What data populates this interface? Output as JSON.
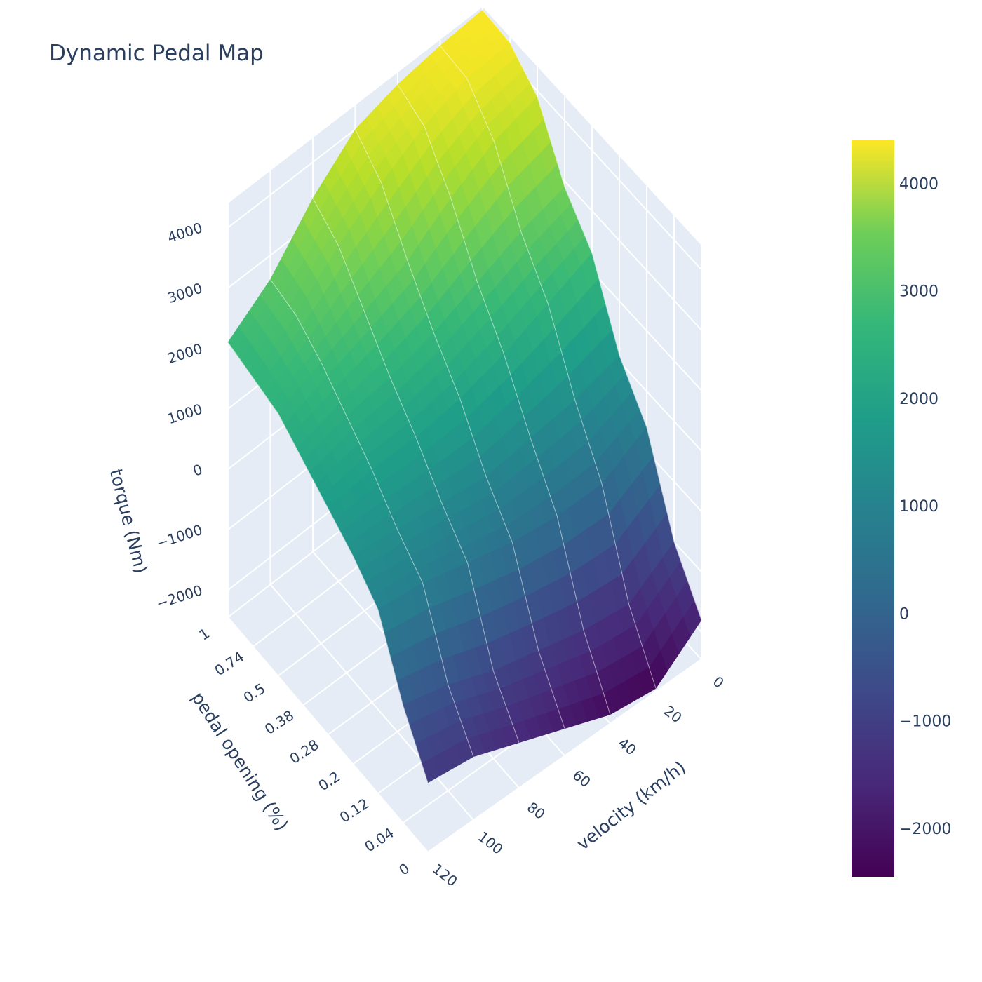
{
  "chart_data": {
    "type": "surface",
    "title": "Dynamic Pedal Map",
    "colorscale": "viridis",
    "x_axis": {
      "title": "velocity (km/h)",
      "tick_labels": [
        "0",
        "20",
        "40",
        "60",
        "80",
        "100",
        "120"
      ]
    },
    "y_axis": {
      "title": "pedal opening (%)",
      "tick_labels": [
        "0",
        "0.04",
        "0.12",
        "0.2",
        "0.28",
        "0.38",
        "0.5",
        "0.74",
        "1"
      ]
    },
    "z_axis": {
      "title": "torque (Nm)",
      "tick_labels": [
        "−2000",
        "−1000",
        "0",
        "1000",
        "2000",
        "3000",
        "4000"
      ],
      "range": [
        -2450,
        4400
      ]
    },
    "colorbar": {
      "range": [
        -2450,
        4400
      ],
      "tick_labels": [
        "−2000",
        "−1000",
        "0",
        "1000",
        "2000",
        "3000",
        "4000"
      ],
      "tick_values": [
        -2000,
        -1000,
        0,
        1000,
        2000,
        3000,
        4000
      ]
    },
    "velocity": [
      0,
      20,
      40,
      60,
      80,
      100,
      120
    ],
    "pedal_opening": [
      0,
      0.04,
      0.12,
      0.2,
      0.28,
      0.38,
      0.5,
      0.74,
      1
    ],
    "torque": [
      [
        -1800,
        -1000,
        400,
        1100,
        2300,
        2900,
        3900,
        4300,
        4350
      ],
      [
        -2400,
        -1500,
        0,
        900,
        2000,
        2700,
        3700,
        4250,
        4300
      ],
      [
        -2300,
        -1400,
        0,
        800,
        1700,
        2400,
        3300,
        4000,
        4200
      ],
      [
        -2000,
        -1200,
        100,
        700,
        1500,
        2100,
        2800,
        3600,
        4000
      ],
      [
        -1700,
        -1000,
        300,
        800,
        1400,
        1900,
        2500,
        3100,
        3400
      ],
      [
        -1400,
        -700,
        500,
        900,
        1400,
        1800,
        2200,
        2500,
        2600
      ],
      [
        -1300,
        -500,
        600,
        1000,
        1300,
        1600,
        1900,
        2000,
        2100
      ]
    ]
  }
}
